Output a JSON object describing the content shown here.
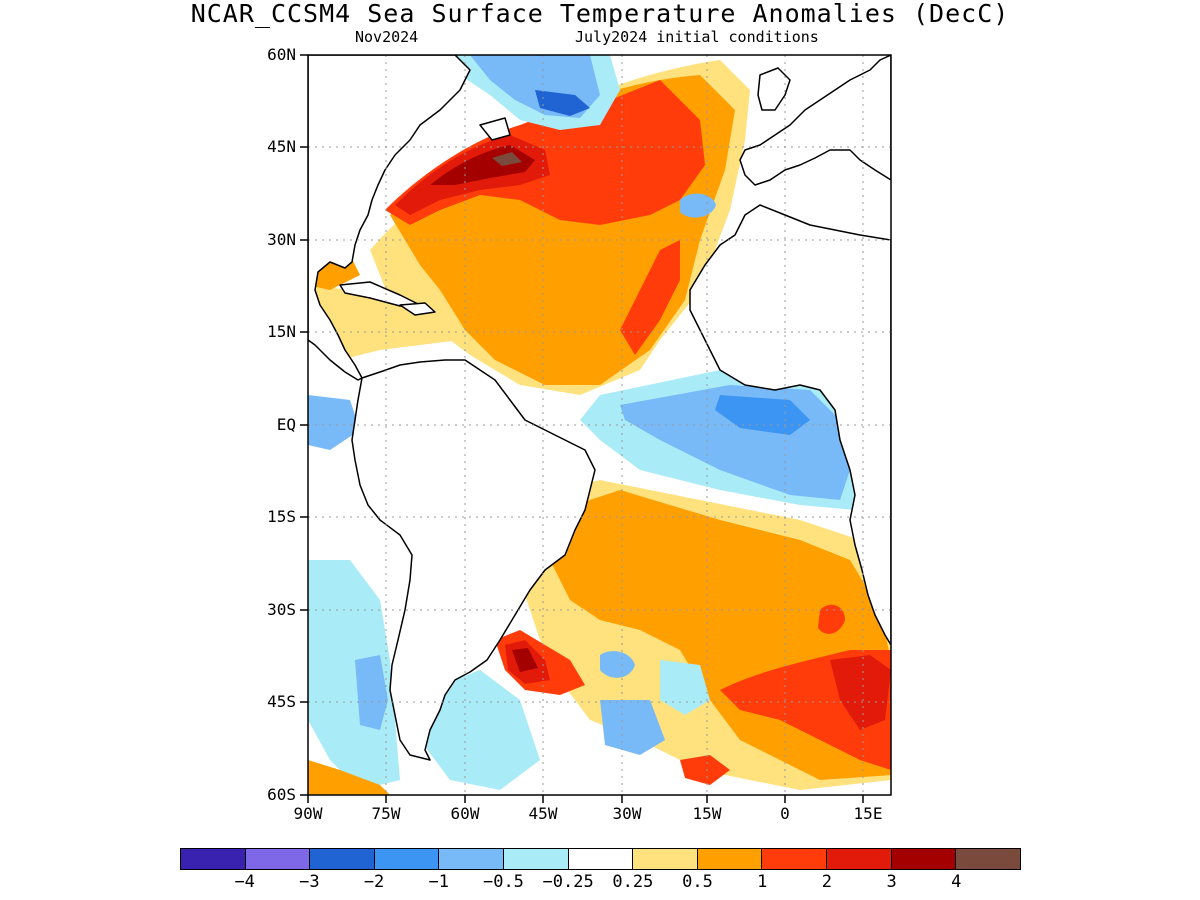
{
  "title": "NCAR_CCSM4 Sea Surface Temperature Anomalies (DecC)",
  "subtitle_left": "Nov2024",
  "subtitle_right": "July2024 initial conditions",
  "lat_labels": [
    "60N",
    "45N",
    "30N",
    "15N",
    "EQ",
    "15S",
    "30S",
    "45S",
    "60S"
  ],
  "lon_labels": [
    "90W",
    "75W",
    "60W",
    "45W",
    "30W",
    "15W",
    "0",
    "15E"
  ],
  "colorbar": {
    "colors": [
      "#3a22b0",
      "#7f68e8",
      "#1f64d2",
      "#3c95f2",
      "#78b9f8",
      "#aaebf8",
      "#ffffff",
      "#ffe17e",
      "#ffa000",
      "#ff3c0a",
      "#e11a0a",
      "#a40000",
      "#7a4a3c"
    ],
    "labels": [
      "−4",
      "−3",
      "−2",
      "−1",
      "−0.5",
      "−0.25",
      "0.25",
      "0.5",
      "1",
      "2",
      "3",
      "4"
    ]
  },
  "regions": {
    "colors": {
      "pos_light": "#ffe17e",
      "pos_mid": "#ffa000",
      "pos_strong": "#ff3c0a",
      "pos_very": "#e11a0a",
      "pos_max": "#a40000",
      "pos_top": "#7a4a3c",
      "neg_light": "#aaebf8",
      "neg_mid": "#78b9f8",
      "neg_strong": "#3c95f2",
      "neg_very": "#1f64d2"
    }
  }
}
